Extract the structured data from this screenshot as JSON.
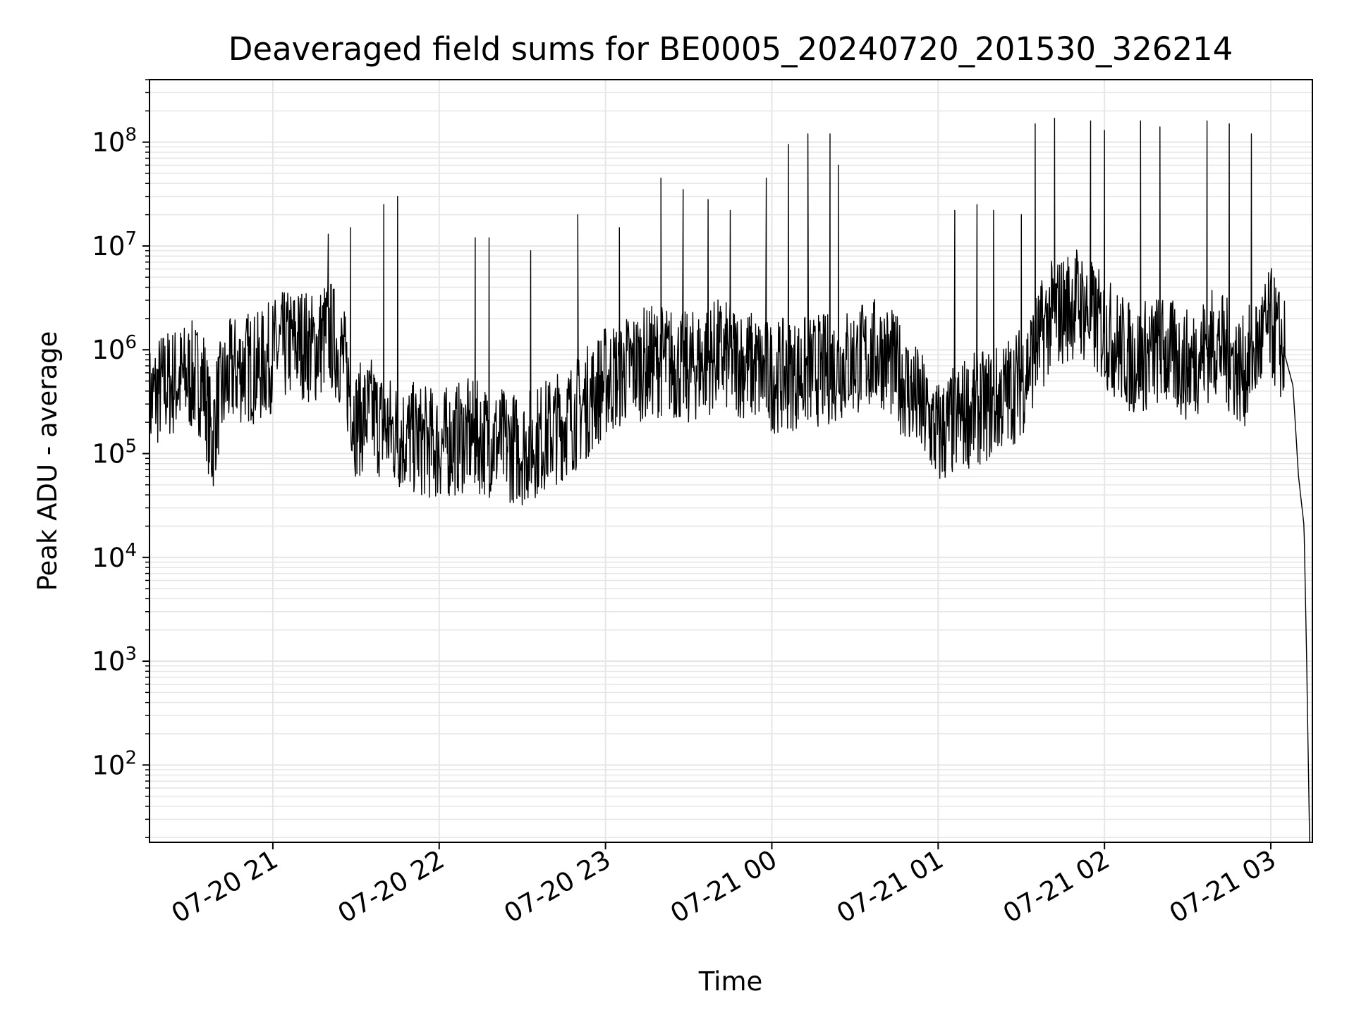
{
  "chart_data": {
    "type": "line",
    "title": "Deaveraged field sums for BE0005_20240720_201530_326214",
    "xlabel": "Time",
    "ylabel": "Peak ADU - average",
    "y_scale": "log",
    "ylim": [
      18,
      400000000
    ],
    "xlim": [
      "2024-07-20 20:15:30",
      "2024-07-21 03:15:00"
    ],
    "x_tick_labels": [
      "07-20 21",
      "07-20 22",
      "07-20 23",
      "07-21 00",
      "07-21 01",
      "07-21 02",
      "07-21 03"
    ],
    "x_tick_values": [
      "2024-07-20 21:00",
      "2024-07-20 22:00",
      "2024-07-20 23:00",
      "2024-07-21 00:00",
      "2024-07-21 01:00",
      "2024-07-21 02:00",
      "2024-07-21 03:00"
    ],
    "y_tick_labels": [
      {
        "base": "10",
        "exp": "2",
        "value": 100
      },
      {
        "base": "10",
        "exp": "3",
        "value": 1000
      },
      {
        "base": "10",
        "exp": "4",
        "value": 10000
      },
      {
        "base": "10",
        "exp": "5",
        "value": 100000
      },
      {
        "base": "10",
        "exp": "6",
        "value": 1000000
      },
      {
        "base": "10",
        "exp": "7",
        "value": 10000000
      },
      {
        "base": "10",
        "exp": "8",
        "value": 100000000
      }
    ],
    "grid": true,
    "line_color": "#000000",
    "grid_color": "#e6e6e6",
    "series": [
      {
        "x": [
          "2024-07-20 20:15",
          "2024-07-20 20:20",
          "2024-07-20 20:25",
          "2024-07-20 20:30",
          "2024-07-20 20:35",
          "2024-07-20 20:38",
          "2024-07-20 20:40",
          "2024-07-20 20:45",
          "2024-07-20 20:50",
          "2024-07-20 20:55",
          "2024-07-20 21:00",
          "2024-07-20 21:05",
          "2024-07-20 21:10",
          "2024-07-20 21:15",
          "2024-07-20 21:20",
          "2024-07-20 21:25",
          "2024-07-20 21:30",
          "2024-07-20 21:35",
          "2024-07-20 21:40",
          "2024-07-20 21:45",
          "2024-07-20 21:50",
          "2024-07-20 21:55",
          "2024-07-20 22:00",
          "2024-07-20 22:10",
          "2024-07-20 22:20",
          "2024-07-20 22:30",
          "2024-07-20 22:40",
          "2024-07-20 22:50",
          "2024-07-20 23:00",
          "2024-07-20 23:10",
          "2024-07-20 23:20",
          "2024-07-20 23:30",
          "2024-07-20 23:40",
          "2024-07-20 23:50",
          "2024-07-21 00:00",
          "2024-07-21 00:10",
          "2024-07-21 00:20",
          "2024-07-21 00:30",
          "2024-07-21 00:40",
          "2024-07-21 00:50",
          "2024-07-21 01:00",
          "2024-07-21 01:10",
          "2024-07-21 01:20",
          "2024-07-21 01:30",
          "2024-07-21 01:40",
          "2024-07-21 01:50",
          "2024-07-21 02:00",
          "2024-07-21 02:10",
          "2024-07-21 02:20",
          "2024-07-21 02:30",
          "2024-07-21 02:40",
          "2024-07-21 02:50",
          "2024-07-21 03:00",
          "2024-07-21 03:05",
          "2024-07-21 03:08",
          "2024-07-21 03:10",
          "2024-07-21 03:12",
          "2024-07-21 03:13",
          "2024-07-21 03:14"
        ],
        "y": [
          300000,
          450000,
          500000,
          550000,
          500000,
          120000,
          300000,
          600000,
          700000,
          650000,
          900000,
          1100000,
          1200000,
          1000000,
          1500000,
          900000,
          200000,
          250000,
          180000,
          150000,
          140000,
          130000,
          120000,
          150000,
          130000,
          110000,
          160000,
          250000,
          500000,
          700000,
          800000,
          650000,
          900000,
          750000,
          550000,
          600000,
          650000,
          800000,
          950000,
          400000,
          150000,
          250000,
          300000,
          500000,
          2000000,
          3000000,
          1500000,
          800000,
          1000000,
          700000,
          1200000,
          600000,
          1800000,
          900000,
          450000,
          60000,
          20000,
          800,
          18
        ]
      }
    ],
    "spike_peaks": [
      {
        "x": "2024-07-20 21:20",
        "y": 13000000
      },
      {
        "x": "2024-07-20 21:28",
        "y": 15000000
      },
      {
        "x": "2024-07-20 21:40",
        "y": 25000000
      },
      {
        "x": "2024-07-20 21:45",
        "y": 30000000
      },
      {
        "x": "2024-07-20 22:13",
        "y": 12000000
      },
      {
        "x": "2024-07-20 22:18",
        "y": 12000000
      },
      {
        "x": "2024-07-20 22:33",
        "y": 9000000
      },
      {
        "x": "2024-07-20 22:50",
        "y": 20000000
      },
      {
        "x": "2024-07-20 23:05",
        "y": 15000000
      },
      {
        "x": "2024-07-20 23:20",
        "y": 45000000
      },
      {
        "x": "2024-07-20 23:28",
        "y": 35000000
      },
      {
        "x": "2024-07-20 23:37",
        "y": 28000000
      },
      {
        "x": "2024-07-20 23:45",
        "y": 22000000
      },
      {
        "x": "2024-07-20 23:58",
        "y": 45000000
      },
      {
        "x": "2024-07-21 00:06",
        "y": 95000000
      },
      {
        "x": "2024-07-21 00:13",
        "y": 120000000
      },
      {
        "x": "2024-07-21 00:21",
        "y": 120000000
      },
      {
        "x": "2024-07-21 00:24",
        "y": 60000000
      },
      {
        "x": "2024-07-21 01:06",
        "y": 22000000
      },
      {
        "x": "2024-07-21 01:14",
        "y": 25000000
      },
      {
        "x": "2024-07-21 01:20",
        "y": 22000000
      },
      {
        "x": "2024-07-21 01:30",
        "y": 20000000
      },
      {
        "x": "2024-07-21 01:35",
        "y": 150000000
      },
      {
        "x": "2024-07-21 01:42",
        "y": 170000000
      },
      {
        "x": "2024-07-21 01:55",
        "y": 160000000
      },
      {
        "x": "2024-07-21 02:00",
        "y": 130000000
      },
      {
        "x": "2024-07-21 02:13",
        "y": 160000000
      },
      {
        "x": "2024-07-21 02:20",
        "y": 140000000
      },
      {
        "x": "2024-07-21 02:37",
        "y": 160000000
      },
      {
        "x": "2024-07-21 02:45",
        "y": 150000000
      },
      {
        "x": "2024-07-21 02:53",
        "y": 120000000
      }
    ]
  }
}
